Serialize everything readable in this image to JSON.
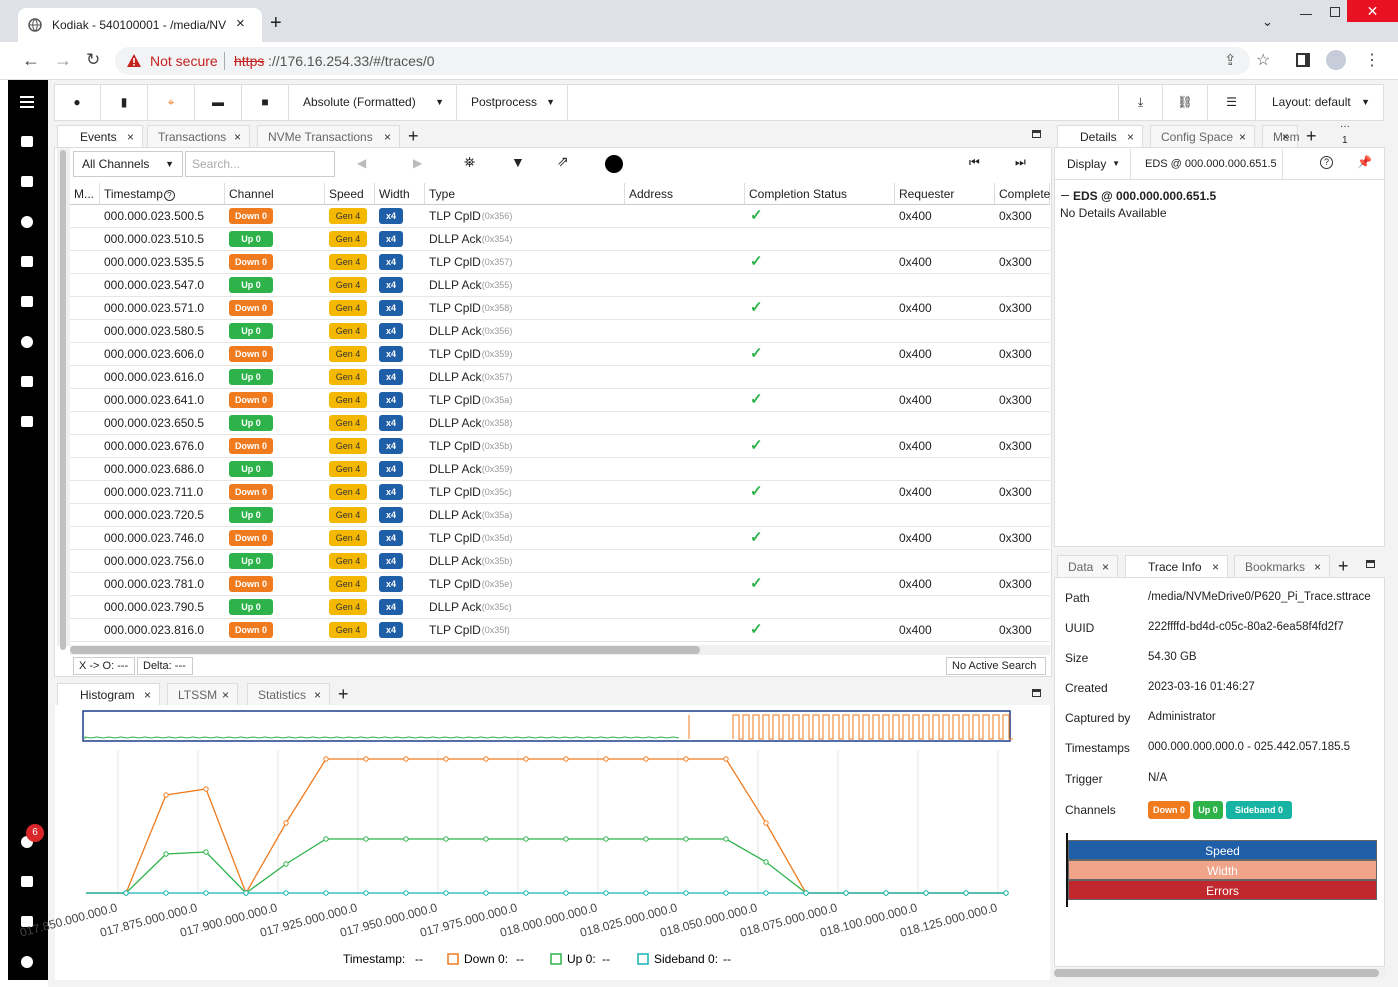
{
  "browser": {
    "tab_title": "Kodiak - 540100001 - /media/NV",
    "security": "Not secure",
    "url_scheme": "https",
    "url_rest": "://176.16.254.33/#/traces/0"
  },
  "toolbar": {
    "time_format": "Absolute (Formatted)",
    "postprocess": "Postprocess",
    "layout": "Layout: default"
  },
  "sidebar": {
    "notification_count": 6
  },
  "events_panel": {
    "tabs": [
      "Events",
      "Transactions",
      "NVMe Transactions"
    ],
    "channel_filter": "All Channels",
    "search_placeholder": "Search...",
    "columns": [
      "M...",
      "Timestamp",
      "Channel",
      "Speed",
      "Width",
      "Type",
      "Address",
      "Completion Status",
      "Requester",
      "Complete"
    ],
    "rows": [
      {
        "timestamp": "000.000.023.500.5",
        "channel": "Down 0",
        "speed": "Gen 4",
        "width": "x4",
        "type": "TLP CplD",
        "type_code": "(0x356)",
        "completed": true,
        "requester": "0x400",
        "completer": "0x300"
      },
      {
        "timestamp": "000.000.023.510.5",
        "channel": "Up 0",
        "speed": "Gen 4",
        "width": "x4",
        "type": "DLLP Ack",
        "type_code": "(0x354)"
      },
      {
        "timestamp": "000.000.023.535.5",
        "channel": "Down 0",
        "speed": "Gen 4",
        "width": "x4",
        "type": "TLP CplD",
        "type_code": "(0x357)",
        "completed": true,
        "requester": "0x400",
        "completer": "0x300"
      },
      {
        "timestamp": "000.000.023.547.0",
        "channel": "Up 0",
        "speed": "Gen 4",
        "width": "x4",
        "type": "DLLP Ack",
        "type_code": "(0x355)"
      },
      {
        "timestamp": "000.000.023.571.0",
        "channel": "Down 0",
        "speed": "Gen 4",
        "width": "x4",
        "type": "TLP CplD",
        "type_code": "(0x358)",
        "completed": true,
        "requester": "0x400",
        "completer": "0x300"
      },
      {
        "timestamp": "000.000.023.580.5",
        "channel": "Up 0",
        "speed": "Gen 4",
        "width": "x4",
        "type": "DLLP Ack",
        "type_code": "(0x356)"
      },
      {
        "timestamp": "000.000.023.606.0",
        "channel": "Down 0",
        "speed": "Gen 4",
        "width": "x4",
        "type": "TLP CplD",
        "type_code": "(0x359)",
        "completed": true,
        "requester": "0x400",
        "completer": "0x300"
      },
      {
        "timestamp": "000.000.023.616.0",
        "channel": "Up 0",
        "speed": "Gen 4",
        "width": "x4",
        "type": "DLLP Ack",
        "type_code": "(0x357)"
      },
      {
        "timestamp": "000.000.023.641.0",
        "channel": "Down 0",
        "speed": "Gen 4",
        "width": "x4",
        "type": "TLP CplD",
        "type_code": "(0x35a)",
        "completed": true,
        "requester": "0x400",
        "completer": "0x300"
      },
      {
        "timestamp": "000.000.023.650.5",
        "channel": "Up 0",
        "speed": "Gen 4",
        "width": "x4",
        "type": "DLLP Ack",
        "type_code": "(0x358)"
      },
      {
        "timestamp": "000.000.023.676.0",
        "channel": "Down 0",
        "speed": "Gen 4",
        "width": "x4",
        "type": "TLP CplD",
        "type_code": "(0x35b)",
        "completed": true,
        "requester": "0x400",
        "completer": "0x300"
      },
      {
        "timestamp": "000.000.023.686.0",
        "channel": "Up 0",
        "speed": "Gen 4",
        "width": "x4",
        "type": "DLLP Ack",
        "type_code": "(0x359)"
      },
      {
        "timestamp": "000.000.023.711.0",
        "channel": "Down 0",
        "speed": "Gen 4",
        "width": "x4",
        "type": "TLP CplD",
        "type_code": "(0x35c)",
        "completed": true,
        "requester": "0x400",
        "completer": "0x300"
      },
      {
        "timestamp": "000.000.023.720.5",
        "channel": "Up 0",
        "speed": "Gen 4",
        "width": "x4",
        "type": "DLLP Ack",
        "type_code": "(0x35a)"
      },
      {
        "timestamp": "000.000.023.746.0",
        "channel": "Down 0",
        "speed": "Gen 4",
        "width": "x4",
        "type": "TLP CplD",
        "type_code": "(0x35d)",
        "completed": true,
        "requester": "0x400",
        "completer": "0x300"
      },
      {
        "timestamp": "000.000.023.756.0",
        "channel": "Up 0",
        "speed": "Gen 4",
        "width": "x4",
        "type": "DLLP Ack",
        "type_code": "(0x35b)"
      },
      {
        "timestamp": "000.000.023.781.0",
        "channel": "Down 0",
        "speed": "Gen 4",
        "width": "x4",
        "type": "TLP CplD",
        "type_code": "(0x35e)",
        "completed": true,
        "requester": "0x400",
        "completer": "0x300"
      },
      {
        "timestamp": "000.000.023.790.5",
        "channel": "Up 0",
        "speed": "Gen 4",
        "width": "x4",
        "type": "DLLP Ack",
        "type_code": "(0x35c)"
      },
      {
        "timestamp": "000.000.023.816.0",
        "channel": "Down 0",
        "speed": "Gen 4",
        "width": "x4",
        "type": "TLP CplD",
        "type_code": "(0x35f)",
        "completed": true,
        "requester": "0x400",
        "completer": "0x300"
      }
    ],
    "status": {
      "cursor": "X -> O: ---",
      "delta": "Delta: ---",
      "search": "No Active Search"
    }
  },
  "bottom_panel": {
    "tabs": [
      "Histogram",
      "LTSSM",
      "Statistics"
    ]
  },
  "chart_data": {
    "type": "line",
    "x": [
      17.84,
      17.8525,
      17.865,
      17.8775,
      17.89,
      17.9025,
      17.915,
      17.9275,
      17.94,
      17.9525,
      17.965,
      17.9775,
      17.99,
      18.0025,
      18.015,
      18.0275,
      18.04,
      18.0525,
      18.065,
      18.0775,
      18.09,
      18.1025,
      18.115,
      18.1275
    ],
    "xlim": [
      17.84,
      18.13
    ],
    "xticks": [
      {
        "value": 17.85,
        "label": "017.850.000.000.0"
      },
      {
        "value": 17.875,
        "label": "017.875.000.000.0"
      },
      {
        "value": 17.9,
        "label": "017.900.000.000.0"
      },
      {
        "value": 17.925,
        "label": "017.925.000.000.0"
      },
      {
        "value": 17.95,
        "label": "017.950.000.000.0"
      },
      {
        "value": 17.975,
        "label": "017.975.000.000.0"
      },
      {
        "value": 18.0,
        "label": "018.000.000.000.0"
      },
      {
        "value": 18.025,
        "label": "018.025.000.000.0"
      },
      {
        "value": 18.05,
        "label": "018.050.000.000.0"
      },
      {
        "value": 18.075,
        "label": "018.075.000.000.0"
      },
      {
        "value": 18.1,
        "label": "018.100.000.000.0"
      },
      {
        "value": 18.125,
        "label": "018.125.000.000.0"
      }
    ],
    "ylim": [
      0,
      140
    ],
    "grid": true,
    "x_legend_label": "Timestamp:",
    "legend_placeholder": "--",
    "series": [
      {
        "name": "Down 0:",
        "color": "#f07b1f",
        "values": [
          0,
          0,
          98,
          104,
          0,
          70,
          134,
          134,
          134,
          134,
          134,
          134,
          134,
          134,
          134,
          134,
          134,
          70,
          0,
          0,
          0,
          0,
          0,
          0
        ]
      },
      {
        "name": "Up 0:",
        "color": "#2db34a",
        "values": [
          0,
          0,
          39,
          41,
          0,
          29,
          54,
          54,
          54,
          54,
          54,
          54,
          54,
          54,
          54,
          54,
          54,
          31,
          0,
          0,
          0,
          0,
          0,
          0
        ]
      },
      {
        "name": "Sideband 0:",
        "color": "#17b3b3",
        "values": [
          0,
          0,
          0,
          0,
          0,
          0,
          0,
          0,
          0,
          0,
          0,
          0,
          0,
          0,
          0,
          0,
          0,
          0,
          0,
          0,
          0,
          0,
          0,
          0
        ]
      }
    ]
  },
  "details_panel": {
    "tabs": [
      "Details",
      "Config Space",
      "Mem"
    ],
    "overflow_count": 1,
    "display": "Display",
    "selection": "EDS @ 000.000.000.651.5",
    "tree_header": "EDS @ 000.000.000.651.5",
    "message": "No Details Available"
  },
  "trace_panel": {
    "tabs": [
      "Data",
      "Trace Info",
      "Bookmarks"
    ],
    "fields": [
      {
        "label": "Path",
        "value": "/media/NVMeDrive0/P620_Pi_Trace.sttrace"
      },
      {
        "label": "UUID",
        "value": "222ffffd-bd4d-c05c-80a2-6ea58f4fd2f7"
      },
      {
        "label": "Size",
        "value": "54.30 GB"
      },
      {
        "label": "Created",
        "value": "2023-03-16 01:46:27"
      },
      {
        "label": "Captured by",
        "value": "Administrator"
      },
      {
        "label": "Timestamps",
        "value": "000.000.000.000.0 - 025.442.057.185.5"
      },
      {
        "label": "Trigger",
        "value": "N/A"
      }
    ],
    "channels_label": "Channels",
    "channels": [
      "Down 0",
      "Up 0",
      "Sideband 0"
    ],
    "legend": [
      "Speed",
      "Width",
      "Errors"
    ]
  }
}
